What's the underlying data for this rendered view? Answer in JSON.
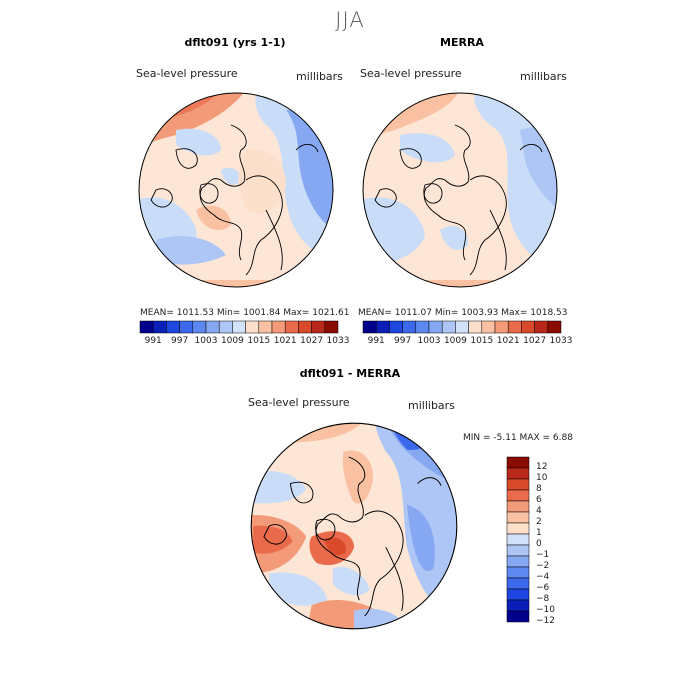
{
  "figure": {
    "season": "JJA",
    "variable": "Sea-level pressure",
    "units": "millibars"
  },
  "panels": [
    {
      "id": "model",
      "title": "dflt091 (yrs 1-1)",
      "stats": "MEAN= 1011.53   Min= 1001.84   Max= 1021.61"
    },
    {
      "id": "obs",
      "title": "MERRA",
      "stats": "MEAN= 1011.07   Min= 1003.93   Max= 1018.53"
    },
    {
      "id": "diff",
      "title": "dflt091 - MERRA",
      "stats": "MIN =   -5.11  MAX =    6.88"
    }
  ],
  "colorbar_abs": {
    "colors": [
      "#00008b",
      "#0a1fb8",
      "#1e46e0",
      "#3c69ec",
      "#5d88ef",
      "#86a8f2",
      "#aec6f6",
      "#d3e2fb",
      "#fde0cc",
      "#f9c0a2",
      "#f39a78",
      "#ea6b4b",
      "#d84a2a",
      "#b8291a",
      "#8b0b00"
    ],
    "labels": [
      "991",
      "997",
      "1003",
      "1009",
      "1015",
      "1021",
      "1027",
      "1033"
    ]
  },
  "colorbar_diff": {
    "colors": [
      "#00008b",
      "#0a1fb8",
      "#1e46e0",
      "#3c69ec",
      "#5d88ef",
      "#86a8f2",
      "#aec6f6",
      "#d3e2fb",
      "#fde0cc",
      "#f9c0a2",
      "#f39a78",
      "#ea6b4b",
      "#d84a2a",
      "#b8291a",
      "#8b0b00"
    ],
    "labels": [
      "12",
      "10",
      "8",
      "6",
      "4",
      "2",
      "1",
      "0",
      "−1",
      "−2",
      "−4",
      "−6",
      "−8",
      "−10",
      "−12"
    ]
  }
}
